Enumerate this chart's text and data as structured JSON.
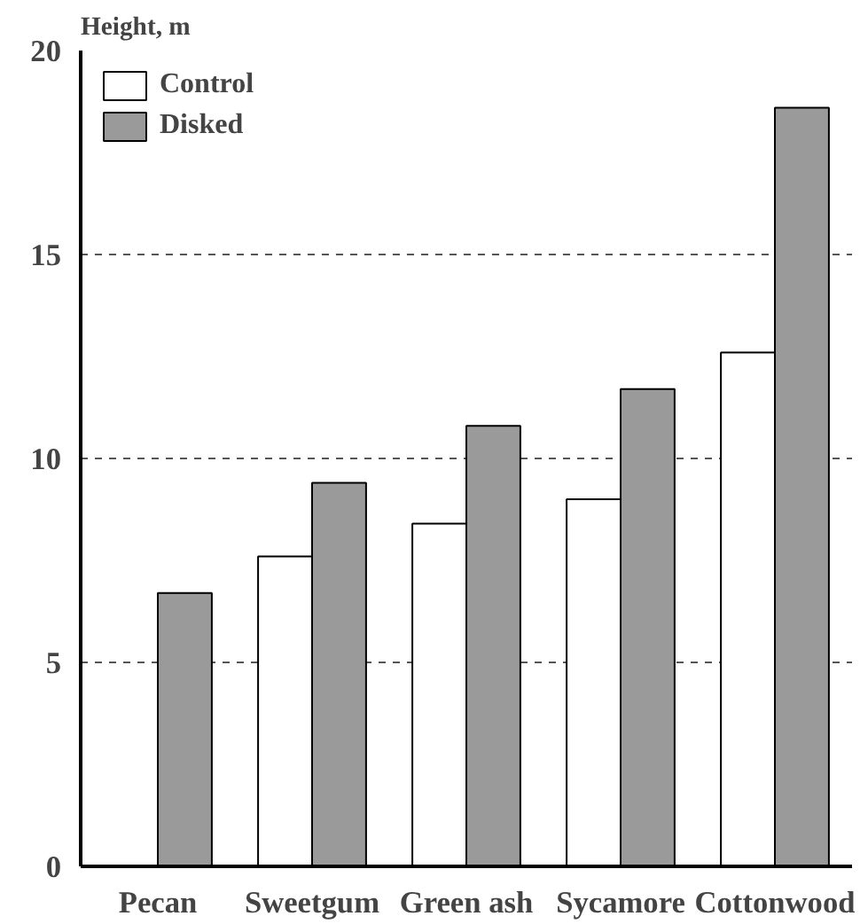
{
  "chart_data": {
    "type": "bar",
    "ylabel": "Height, m",
    "categories": [
      "Pecan",
      "Sweetgum",
      "Green ash",
      "Sycamore",
      "Cottonwood"
    ],
    "series": [
      {
        "name": "Control",
        "color": "#ffffff",
        "values": [
          null,
          7.6,
          8.4,
          9.0,
          12.6
        ]
      },
      {
        "name": "Disked",
        "color": "#9a9a9a",
        "values": [
          6.7,
          9.4,
          10.8,
          11.7,
          18.6
        ]
      }
    ],
    "ylim": [
      0,
      20
    ],
    "yticks": [
      0,
      5,
      10,
      15,
      20
    ],
    "grid": "y",
    "legend": "top left"
  }
}
